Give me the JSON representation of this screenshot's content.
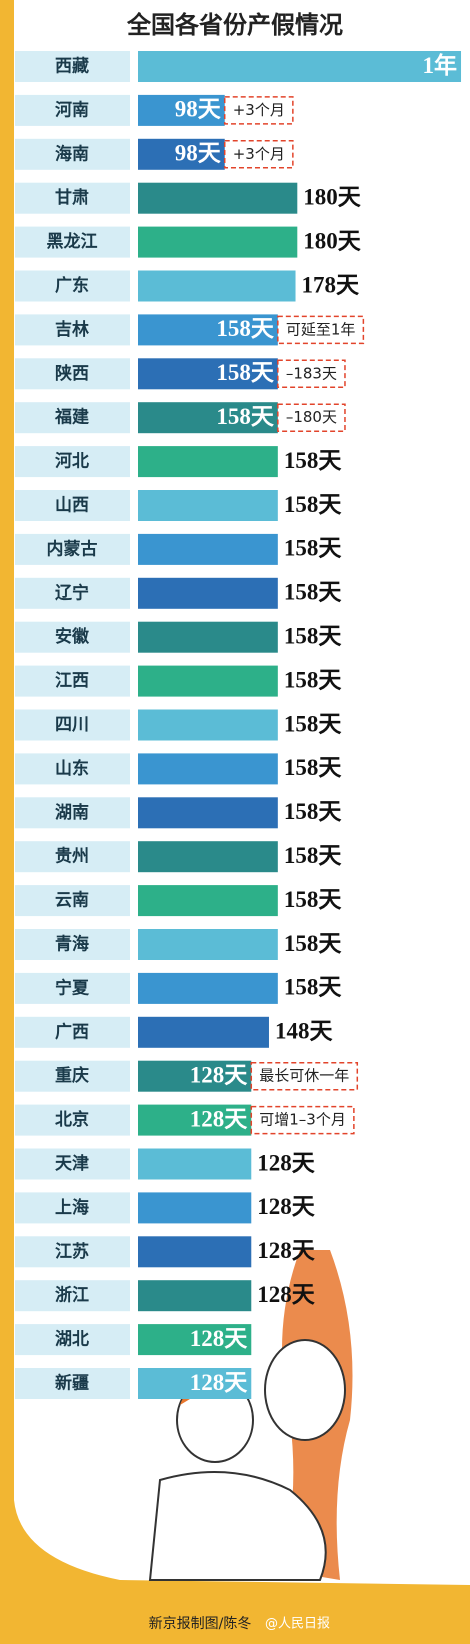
{
  "chart_data": {
    "type": "bar",
    "orientation": "horizontal",
    "title": "全国各省份产假情况",
    "source": "新京报制图/陈冬",
    "watermark": "@人民日报",
    "categories": [
      "西藏",
      "河南",
      "海南",
      "甘肃",
      "黑龙江",
      "广东",
      "吉林",
      "陕西",
      "福建",
      "河北",
      "山西",
      "内蒙古",
      "辽宁",
      "安徽",
      "江西",
      "四川",
      "山东",
      "湖南",
      "贵州",
      "云南",
      "青海",
      "宁夏",
      "广西",
      "重庆",
      "北京",
      "天津",
      "上海",
      "江苏",
      "浙江",
      "湖北",
      "新疆"
    ],
    "values": [
      365,
      98,
      98,
      180,
      180,
      178,
      158,
      158,
      158,
      158,
      158,
      158,
      158,
      158,
      158,
      158,
      158,
      158,
      158,
      158,
      158,
      158,
      148,
      128,
      128,
      128,
      128,
      128,
      128,
      128,
      128
    ],
    "value_labels": [
      "1年",
      "98天",
      "98天",
      "180天",
      "180天",
      "178天",
      "158天",
      "158天",
      "158天",
      "158天",
      "158天",
      "158天",
      "158天",
      "158天",
      "158天",
      "158天",
      "158天",
      "158天",
      "158天",
      "158天",
      "158天",
      "158天",
      "148天",
      "128天",
      "128天",
      "128天",
      "128天",
      "128天",
      "128天",
      "128天",
      "128天"
    ],
    "colors": [
      "#5bbcd6",
      "#3a95d0",
      "#2c6fb5",
      "#2a8a8a",
      "#2db089"
    ],
    "annotations": [
      {
        "category": "河南",
        "text": "+3个月"
      },
      {
        "category": "海南",
        "text": "+3个月"
      },
      {
        "category": "吉林",
        "text": "可延至1年"
      },
      {
        "category": "陕西",
        "text": "–183天"
      },
      {
        "category": "福建",
        "text": "–180天"
      },
      {
        "category": "重庆",
        "text": "最长可休一年"
      },
      {
        "category": "北京",
        "text": "可增1–3个月"
      }
    ]
  }
}
